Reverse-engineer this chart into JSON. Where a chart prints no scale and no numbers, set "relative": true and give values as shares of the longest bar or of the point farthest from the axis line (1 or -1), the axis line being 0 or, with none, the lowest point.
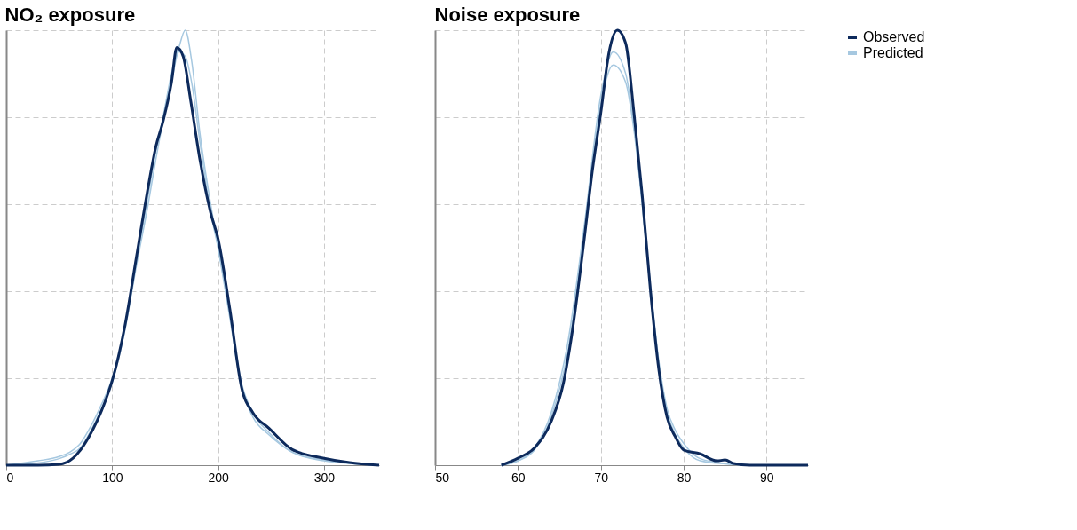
{
  "chart_data": [
    {
      "type": "line",
      "title": "NO₂ exposure",
      "relative": true,
      "grid": true,
      "legend": "right",
      "xlim": [
        0,
        352
      ],
      "xticks": [
        0,
        100,
        200,
        300
      ],
      "series": [
        {
          "name": "Observed",
          "color": "#0d2a5c",
          "x": [
            0,
            30,
            50,
            63,
            78,
            93,
            100,
            112,
            123,
            134,
            141,
            148,
            156,
            161,
            167,
            174,
            183,
            193,
            200,
            211,
            222,
            233,
            248,
            270,
            300,
            324,
            352
          ],
          "values": [
            0,
            0,
            0.002,
            0.016,
            0.065,
            0.144,
            0.194,
            0.32,
            0.48,
            0.64,
            0.73,
            0.79,
            0.88,
            0.96,
            0.94,
            0.84,
            0.7,
            0.58,
            0.52,
            0.36,
            0.18,
            0.12,
            0.085,
            0.036,
            0.016,
            0.006,
            0
          ]
        },
        {
          "name": "Predicted",
          "color": "#a6c8e0",
          "x": [
            0,
            30,
            50,
            60,
            70,
            80,
            90,
            100,
            112,
            123,
            134,
            141,
            148,
            156,
            163,
            169,
            175,
            183,
            193,
            200,
            211,
            222,
            233,
            248,
            270,
            300,
            324,
            352
          ],
          "values": [
            0,
            0.01,
            0.02,
            0.03,
            0.05,
            0.09,
            0.14,
            0.2,
            0.32,
            0.47,
            0.62,
            0.72,
            0.8,
            0.9,
            0.96,
            1.0,
            0.93,
            0.76,
            0.6,
            0.5,
            0.34,
            0.18,
            0.11,
            0.07,
            0.03,
            0.01,
            0.004,
            0
          ]
        },
        {
          "color": "#a6c8e0",
          "x": [
            0,
            30,
            50,
            60,
            70,
            80,
            90,
            100,
            112,
            123,
            134,
            141,
            148,
            156,
            163,
            169,
            175,
            183,
            193,
            200,
            211,
            222,
            233,
            248,
            270,
            300,
            324,
            352
          ],
          "values": [
            0,
            0.005,
            0.015,
            0.025,
            0.04,
            0.08,
            0.13,
            0.19,
            0.31,
            0.46,
            0.6,
            0.7,
            0.79,
            0.88,
            0.95,
            0.94,
            0.88,
            0.74,
            0.58,
            0.5,
            0.35,
            0.19,
            0.12,
            0.075,
            0.03,
            0.012,
            0.004,
            0
          ]
        }
      ]
    },
    {
      "type": "line",
      "title": "Noise exposure",
      "relative": true,
      "grid": true,
      "xlim": [
        50,
        95
      ],
      "xticks": [
        50,
        60,
        70,
        80,
        90
      ],
      "series": [
        {
          "color": "#0d2a5c",
          "x": [
            58,
            60,
            62,
            64,
            65.5,
            66.5,
            68,
            69,
            70,
            71,
            72,
            73,
            74,
            75,
            76,
            77,
            78,
            79,
            80,
            82,
            84,
            85,
            86,
            88,
            95
          ],
          "values": [
            0,
            0.016,
            0.04,
            0.1,
            0.19,
            0.3,
            0.52,
            0.68,
            0.81,
            0.95,
            1.0,
            0.97,
            0.81,
            0.62,
            0.4,
            0.22,
            0.11,
            0.065,
            0.035,
            0.026,
            0.01,
            0.012,
            0.004,
            0,
            0
          ]
        },
        {
          "color": "#a6c8e0",
          "x": [
            58,
            60,
            62,
            64,
            66,
            68,
            70,
            71.5,
            73,
            74,
            75,
            76,
            77,
            78,
            79,
            80,
            82,
            85,
            88,
            95
          ],
          "values": [
            0,
            0.01,
            0.04,
            0.12,
            0.28,
            0.55,
            0.85,
            0.95,
            0.9,
            0.78,
            0.6,
            0.4,
            0.22,
            0.12,
            0.07,
            0.04,
            0.01,
            0.003,
            0,
            0
          ]
        },
        {
          "color": "#a6c8e0",
          "x": [
            58,
            60,
            62,
            64,
            66,
            68,
            70,
            71.5,
            73,
            74,
            75,
            76,
            77,
            78,
            79,
            80,
            82,
            85,
            88,
            95
          ],
          "values": [
            0,
            0.01,
            0.035,
            0.11,
            0.26,
            0.53,
            0.83,
            0.92,
            0.88,
            0.77,
            0.6,
            0.41,
            0.24,
            0.13,
            0.08,
            0.05,
            0.015,
            0.004,
            0,
            0
          ]
        }
      ]
    }
  ]
}
